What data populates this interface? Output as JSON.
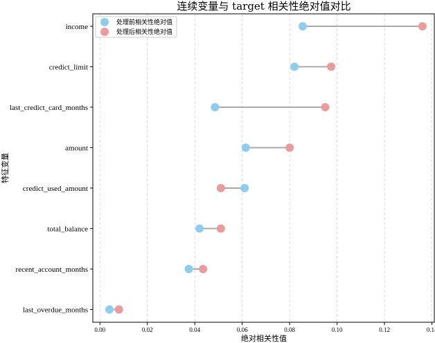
{
  "chart_data": {
    "type": "dumbbell",
    "title": "连续变量与 target 相关性绝对值对比",
    "xlabel": "绝对相关性值",
    "ylabel": "特征变量",
    "xlim": [
      -0.003,
      0.141
    ],
    "xticks": [
      0.0,
      0.02,
      0.04,
      0.06,
      0.08,
      0.1,
      0.12,
      0.14
    ],
    "xtick_labels": [
      "0.00",
      "0.02",
      "0.04",
      "0.06",
      "0.08",
      "0.10",
      "0.12",
      "0.14"
    ],
    "grid": "vertical-dashed",
    "legend_position": "top-left",
    "categories": [
      "income",
      "credict_limit",
      "last_credict_card_months",
      "amount",
      "credict_used_amount",
      "total_balance",
      "recent_account_months",
      "last_overdue_months"
    ],
    "series": [
      {
        "name": "处理前相关性绝对值",
        "color": "#8ecdee",
        "values": [
          0.0855,
          0.082,
          0.0485,
          0.0615,
          0.061,
          0.042,
          0.0375,
          0.004
        ]
      },
      {
        "name": "处理后相关性绝对值",
        "color": "#eb9b9b",
        "values": [
          0.136,
          0.0975,
          0.095,
          0.08,
          0.051,
          0.051,
          0.0435,
          0.008
        ]
      }
    ],
    "connector_color": "#a9a9a9"
  }
}
